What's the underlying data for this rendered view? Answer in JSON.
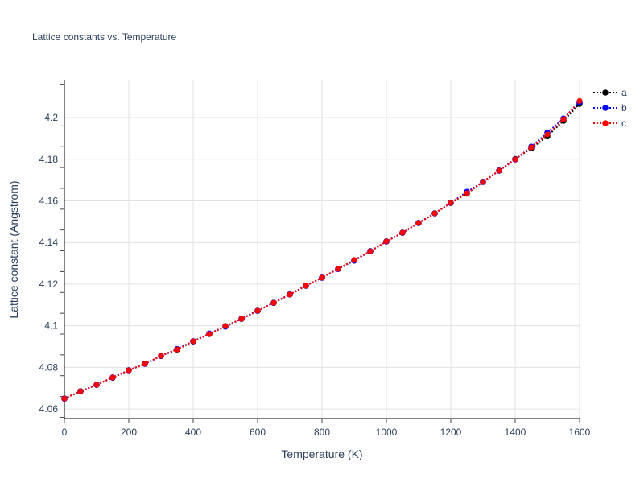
{
  "chart_data": {
    "type": "line",
    "title": "Lattice constants vs. Temperature",
    "xlabel": "Temperature (K)",
    "ylabel": "Lattice constant (Angstrom)",
    "xlim": [
      0,
      1600
    ],
    "ylim": [
      4.0554,
      4.2178
    ],
    "xticks": [
      0,
      200,
      400,
      600,
      800,
      1000,
      1200,
      1400,
      1600
    ],
    "yticks": [
      4.06,
      4.08,
      4.1,
      4.12,
      4.14,
      4.16,
      4.18,
      4.2
    ],
    "ytick_labels": [
      "4.06",
      "4.08",
      "4.1",
      "4.12",
      "4.14",
      "4.16",
      "4.18",
      "4.2"
    ],
    "grid": true,
    "legend_position": "top-right",
    "line_style": "dotted with markers",
    "x": [
      0,
      50,
      100,
      150,
      200,
      250,
      300,
      350,
      400,
      450,
      500,
      550,
      600,
      650,
      700,
      750,
      800,
      850,
      900,
      950,
      1000,
      1050,
      1100,
      1150,
      1200,
      1250,
      1300,
      1350,
      1400,
      1450,
      1500,
      1550,
      1600
    ],
    "series": [
      {
        "name": "a",
        "color": "#000000",
        "values": [
          4.065,
          4.0685,
          4.0716,
          4.0751,
          4.0786,
          4.0817,
          4.0855,
          4.0886,
          4.0925,
          4.096,
          4.0998,
          4.1033,
          4.1072,
          4.111,
          4.115,
          4.1192,
          4.1231,
          4.1273,
          4.1313,
          4.1358,
          4.1405,
          4.1447,
          4.1494,
          4.154,
          4.159,
          4.1635,
          4.1691,
          4.1745,
          4.1801,
          4.1853,
          4.191,
          4.1985,
          4.2066
        ]
      },
      {
        "name": "b",
        "color": "#0000ff",
        "values": [
          4.065,
          4.0685,
          4.0716,
          4.0751,
          4.0786,
          4.0817,
          4.0855,
          4.0888,
          4.0925,
          4.0962,
          4.0996,
          4.1033,
          4.1072,
          4.111,
          4.115,
          4.1192,
          4.1231,
          4.1273,
          4.1314,
          4.1358,
          4.1405,
          4.1447,
          4.1494,
          4.154,
          4.159,
          4.1643,
          4.1691,
          4.1745,
          4.1799,
          4.186,
          4.1928,
          4.1995,
          4.2074
        ]
      },
      {
        "name": "c",
        "color": "#ff0000",
        "values": [
          4.065,
          4.0685,
          4.0716,
          4.0751,
          4.0786,
          4.0817,
          4.0855,
          4.0886,
          4.0925,
          4.096,
          4.0998,
          4.1033,
          4.1072,
          4.111,
          4.115,
          4.1192,
          4.1231,
          4.1273,
          4.1316,
          4.1358,
          4.1405,
          4.1447,
          4.1494,
          4.154,
          4.159,
          4.1637,
          4.1691,
          4.1745,
          4.1799,
          4.1857,
          4.1919,
          4.1992,
          4.208
        ]
      }
    ]
  }
}
